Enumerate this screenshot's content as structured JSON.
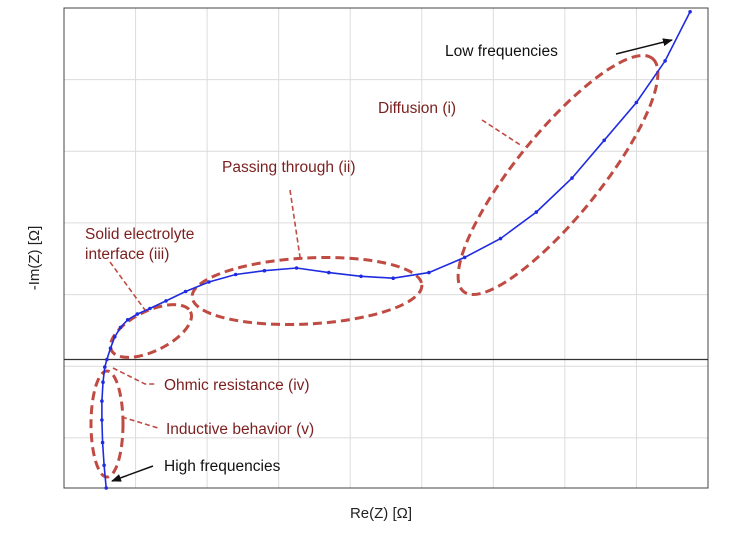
{
  "chart_data": {
    "type": "line",
    "title": "",
    "xlabel": "Re(Z) [Ω]",
    "ylabel": "-Im(Z) [Ω]",
    "x_tick_labels": false,
    "y_tick_labels": false,
    "grid": true,
    "zero_line": true,
    "xlim": [
      0,
      18
    ],
    "ylim": [
      -3.4,
      9.3
    ],
    "colors": {
      "curve": "#1f2be0",
      "region": "#bf4b43",
      "label": "#7b1f1f",
      "grid": "#dcdcdc",
      "axis": "#444444"
    },
    "series": [
      {
        "name": "",
        "x": [
          1.18,
          1.12,
          1.08,
          1.06,
          1.06,
          1.09,
          1.14,
          1.2,
          1.3,
          1.42,
          1.58,
          1.78,
          2.05,
          2.4,
          2.85,
          3.4,
          4.05,
          4.8,
          5.6,
          6.5,
          7.4,
          8.3,
          9.2,
          10.2,
          11.2,
          12.2,
          13.2,
          14.2,
          15.1,
          16.0,
          16.8,
          17.5
        ],
        "y": [
          -3.4,
          -2.8,
          -2.2,
          -1.6,
          -1.1,
          -0.6,
          -0.2,
          0.0,
          0.3,
          0.6,
          0.85,
          1.05,
          1.2,
          1.35,
          1.55,
          1.8,
          2.05,
          2.25,
          2.35,
          2.42,
          2.3,
          2.2,
          2.15,
          2.3,
          2.7,
          3.2,
          3.9,
          4.8,
          5.8,
          6.8,
          7.9,
          9.2
        ]
      }
    ],
    "regions": [
      {
        "label": "Diffusion (i)",
        "callout": "Diffusion (i)"
      },
      {
        "label": "Passing through (ii)",
        "callout": "Passing through (ii)"
      },
      {
        "label": "Solid electrolyte interface (iii)",
        "callout_lines": [
          "Solid electrolyte",
          "interface (iii)"
        ]
      },
      {
        "label": "Ohmic resistance (iv)",
        "callout": "Ohmic resistance (iv)"
      },
      {
        "label": "Inductive behavior (v)",
        "callout": "Inductive behavior (v)"
      }
    ],
    "annotations": [
      "Low frequencies",
      "High frequencies"
    ]
  }
}
